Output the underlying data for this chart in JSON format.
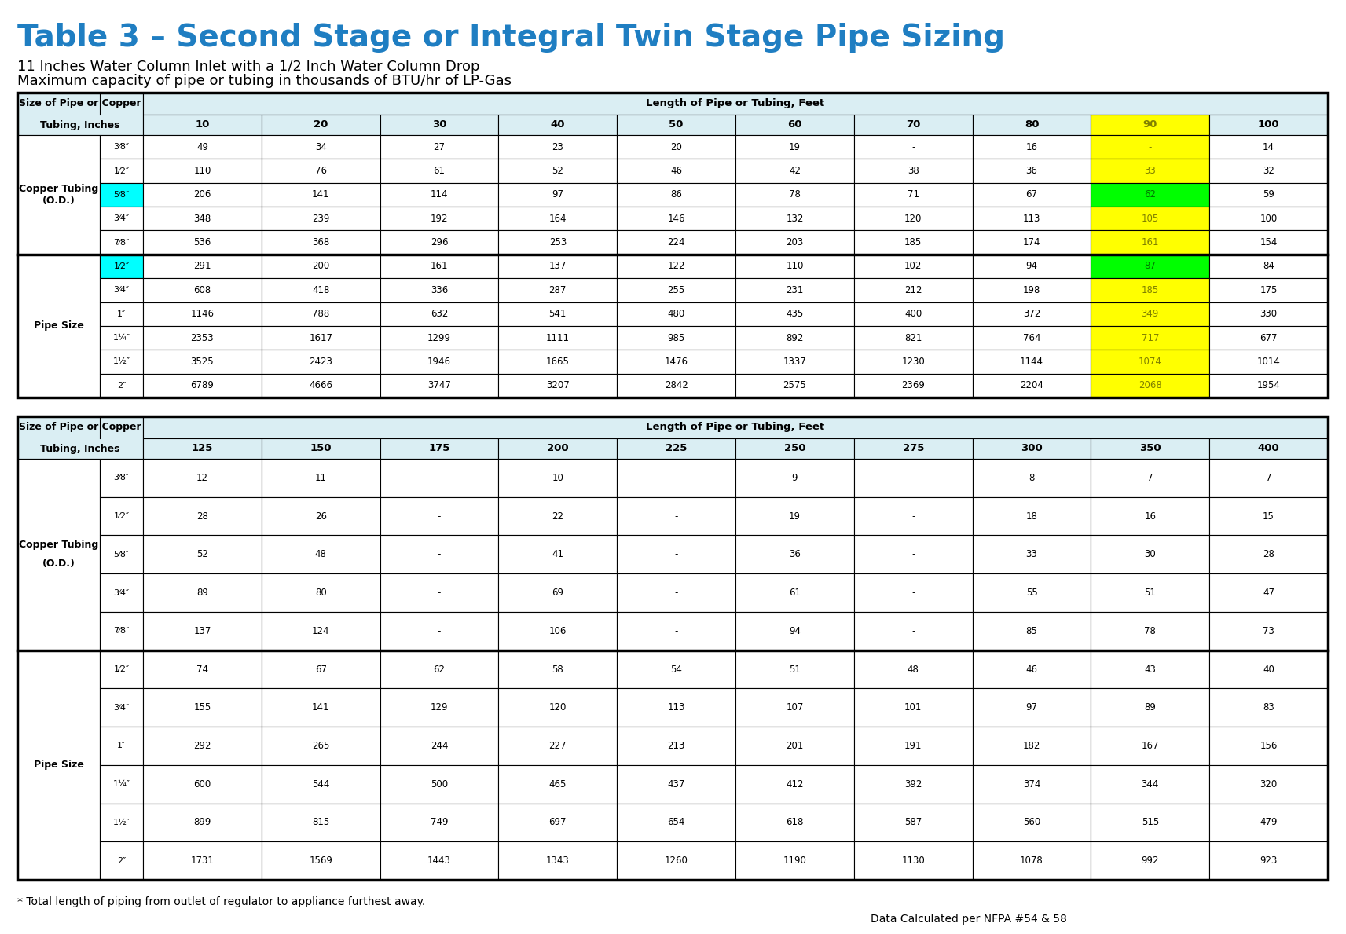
{
  "title": "Table 3 – Second Stage or Integral Twin Stage Pipe Sizing",
  "subtitle1": "11 Inches Water Column Inlet with a 1/2 Inch Water Column Drop",
  "subtitle2": "Maximum capacity of pipe or tubing in thousands of BTU/hr of LP-Gas",
  "footnote": "* Total length of piping from outlet of regulator to appliance furthest away.",
  "data_source": "Data Calculated per NFPA #54 & 58",
  "title_color": "#1F7EC2",
  "title_fontsize": 24,
  "subtitle_fontsize": 12,
  "header_bg": "#DAEEF3",
  "col90_bg": "#FFFF00",
  "cyan_bg": "#00FFFF",
  "green_bg": "#00FF00",
  "white": "#FFFFFF",
  "table1": {
    "lengths": [
      10,
      20,
      30,
      40,
      50,
      60,
      70,
      80,
      90,
      100
    ],
    "groups": [
      {
        "group_label_line1": "Copper Tubing",
        "group_label_line2": "(O.D.)",
        "rows": [
          {
            "label": "3⁄8″",
            "values": [
              "49",
              "34",
              "27",
              "23",
              "20",
              "19",
              "-",
              "16",
              "-",
              "14"
            ],
            "hl_label": false,
            "hl_col": -1
          },
          {
            "label": "1⁄2″",
            "values": [
              "110",
              "76",
              "61",
              "52",
              "46",
              "42",
              "38",
              "36",
              "33",
              "32"
            ],
            "hl_label": false,
            "hl_col": -1
          },
          {
            "label": "5⁄8″",
            "values": [
              "206",
              "141",
              "114",
              "97",
              "86",
              "78",
              "71",
              "67",
              "62",
              "59"
            ],
            "hl_label": true,
            "hl_col": 8
          },
          {
            "label": "3⁄4″",
            "values": [
              "348",
              "239",
              "192",
              "164",
              "146",
              "132",
              "120",
              "113",
              "105",
              "100"
            ],
            "hl_label": false,
            "hl_col": -1
          },
          {
            "label": "7⁄8″",
            "values": [
              "536",
              "368",
              "296",
              "253",
              "224",
              "203",
              "185",
              "174",
              "161",
              "154"
            ],
            "hl_label": false,
            "hl_col": -1
          }
        ]
      },
      {
        "group_label_line1": "Pipe Size",
        "group_label_line2": "",
        "rows": [
          {
            "label": "1⁄2″",
            "values": [
              "291",
              "200",
              "161",
              "137",
              "122",
              "110",
              "102",
              "94",
              "87",
              "84"
            ],
            "hl_label": true,
            "hl_col": 8
          },
          {
            "label": "3⁄4″",
            "values": [
              "608",
              "418",
              "336",
              "287",
              "255",
              "231",
              "212",
              "198",
              "185",
              "175"
            ],
            "hl_label": false,
            "hl_col": -1
          },
          {
            "label": "1″",
            "values": [
              "1146",
              "788",
              "632",
              "541",
              "480",
              "435",
              "400",
              "372",
              "349",
              "330"
            ],
            "hl_label": false,
            "hl_col": -1
          },
          {
            "label": "1¼″",
            "values": [
              "2353",
              "1617",
              "1299",
              "1111",
              "985",
              "892",
              "821",
              "764",
              "717",
              "677"
            ],
            "hl_label": false,
            "hl_col": -1
          },
          {
            "label": "1½″",
            "values": [
              "3525",
              "2423",
              "1946",
              "1665",
              "1476",
              "1337",
              "1230",
              "1144",
              "1074",
              "1014"
            ],
            "hl_label": false,
            "hl_col": -1
          },
          {
            "label": "2″",
            "values": [
              "6789",
              "4666",
              "3747",
              "3207",
              "2842",
              "2575",
              "2369",
              "2204",
              "2068",
              "1954"
            ],
            "hl_label": false,
            "hl_col": -1
          }
        ]
      }
    ]
  },
  "table2": {
    "lengths": [
      125,
      150,
      175,
      200,
      225,
      250,
      275,
      300,
      350,
      400
    ],
    "groups": [
      {
        "group_label_line1": "Copper Tubing",
        "group_label_line2": "(O.D.)",
        "rows": [
          {
            "label": "3⁄8″",
            "values": [
              "12",
              "11",
              "-",
              "10",
              "-",
              "9",
              "-",
              "8",
              "7",
              "7"
            ],
            "hl_label": false,
            "hl_col": -1
          },
          {
            "label": "1⁄2″",
            "values": [
              "28",
              "26",
              "-",
              "22",
              "-",
              "19",
              "-",
              "18",
              "16",
              "15"
            ],
            "hl_label": false,
            "hl_col": -1
          },
          {
            "label": "5⁄8″",
            "values": [
              "52",
              "48",
              "-",
              "41",
              "-",
              "36",
              "-",
              "33",
              "30",
              "28"
            ],
            "hl_label": false,
            "hl_col": -1
          },
          {
            "label": "3⁄4″",
            "values": [
              "89",
              "80",
              "-",
              "69",
              "-",
              "61",
              "-",
              "55",
              "51",
              "47"
            ],
            "hl_label": false,
            "hl_col": -1
          },
          {
            "label": "7⁄8″",
            "values": [
              "137",
              "124",
              "-",
              "106",
              "-",
              "94",
              "-",
              "85",
              "78",
              "73"
            ],
            "hl_label": false,
            "hl_col": -1
          }
        ]
      },
      {
        "group_label_line1": "Pipe Size",
        "group_label_line2": "",
        "rows": [
          {
            "label": "1⁄2″",
            "values": [
              "74",
              "67",
              "62",
              "58",
              "54",
              "51",
              "48",
              "46",
              "43",
              "40"
            ],
            "hl_label": false,
            "hl_col": -1
          },
          {
            "label": "3⁄4″",
            "values": [
              "155",
              "141",
              "129",
              "120",
              "113",
              "107",
              "101",
              "97",
              "89",
              "83"
            ],
            "hl_label": false,
            "hl_col": -1
          },
          {
            "label": "1″",
            "values": [
              "292",
              "265",
              "244",
              "227",
              "213",
              "201",
              "191",
              "182",
              "167",
              "156"
            ],
            "hl_label": false,
            "hl_col": -1
          },
          {
            "label": "1¼″",
            "values": [
              "600",
              "544",
              "500",
              "465",
              "437",
              "412",
              "392",
              "374",
              "344",
              "320"
            ],
            "hl_label": false,
            "hl_col": -1
          },
          {
            "label": "1½″",
            "values": [
              "899",
              "815",
              "749",
              "697",
              "654",
              "618",
              "587",
              "560",
              "515",
              "479"
            ],
            "hl_label": false,
            "hl_col": -1
          },
          {
            "label": "2″",
            "values": [
              "1731",
              "1569",
              "1443",
              "1343",
              "1260",
              "1190",
              "1130",
              "1078",
              "992",
              "923"
            ],
            "hl_label": false,
            "hl_col": -1
          }
        ]
      }
    ]
  }
}
